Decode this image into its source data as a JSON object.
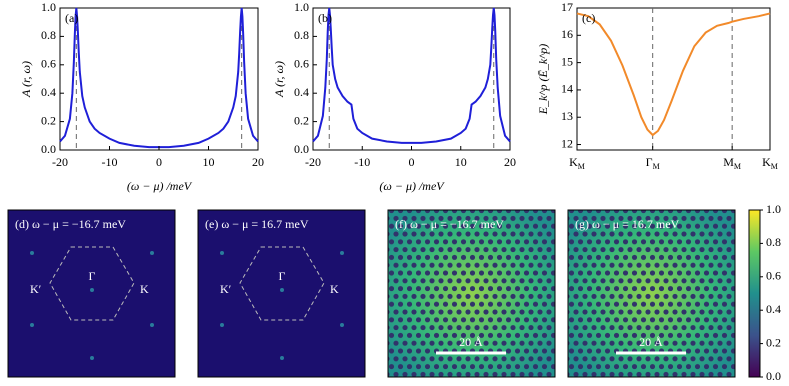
{
  "chart_data": [
    {
      "type": "line",
      "label": "(a)",
      "xlabel": "(ω − μ) /meV",
      "ylabel": "A (r, ω)",
      "color": "#1f1fd8",
      "xlim": [
        -20,
        20
      ],
      "xticks": [
        -20,
        -10,
        0,
        10,
        20
      ],
      "ylim": [
        0,
        1
      ],
      "yticks": [
        {
          "value": 0,
          "label": "0.0"
        },
        0.2,
        0.4,
        0.6,
        0.8,
        {
          "value": 1,
          "label": "1.0"
        }
      ],
      "vlines": [
        -16.7,
        16.7
      ],
      "x": [
        -20,
        -19,
        -18,
        -17.5,
        -17.2,
        -17,
        -16.85,
        -16.7,
        -16.55,
        -16.4,
        -16.2,
        -16,
        -15.5,
        -15,
        -14,
        -13,
        -12,
        -10,
        -8,
        -5,
        -2,
        0,
        2,
        5,
        8,
        10,
        12,
        13,
        14,
        15,
        15.5,
        16,
        16.2,
        16.4,
        16.55,
        16.7,
        16.85,
        17,
        17.2,
        17.5,
        18,
        19,
        20
      ],
      "values": [
        0.06,
        0.1,
        0.22,
        0.4,
        0.62,
        0.82,
        0.94,
        1.0,
        0.94,
        0.84,
        0.68,
        0.55,
        0.38,
        0.3,
        0.2,
        0.15,
        0.12,
        0.08,
        0.05,
        0.03,
        0.02,
        0.02,
        0.02,
        0.03,
        0.05,
        0.08,
        0.12,
        0.15,
        0.2,
        0.3,
        0.38,
        0.55,
        0.68,
        0.84,
        0.94,
        1.0,
        0.94,
        0.82,
        0.62,
        0.4,
        0.22,
        0.1,
        0.06
      ]
    },
    {
      "type": "line",
      "label": "(b)",
      "xlabel": "(ω − μ) /meV",
      "ylabel": "A (r, ω)",
      "color": "#1f1fd8",
      "xlim": [
        -20,
        20
      ],
      "xticks": [
        -20,
        -10,
        0,
        10,
        20
      ],
      "ylim": [
        0,
        1
      ],
      "yticks": [
        {
          "value": 0,
          "label": "0.0"
        },
        0.2,
        0.4,
        0.6,
        0.8,
        {
          "value": 1,
          "label": "1.0"
        }
      ],
      "vlines": [
        -16.7,
        16.7
      ],
      "x": [
        -20,
        -19,
        -18,
        -17.5,
        -17.2,
        -17,
        -16.85,
        -16.7,
        -16.55,
        -16.4,
        -16.2,
        -16,
        -15.5,
        -15,
        -14,
        -13,
        -12.2,
        -11.8,
        -11,
        -10,
        -8,
        -5,
        -2,
        0,
        2,
        5,
        8,
        10,
        11,
        11.8,
        12.2,
        13,
        14,
        15,
        15.5,
        16,
        16.2,
        16.4,
        16.55,
        16.7,
        16.85,
        17,
        17.2,
        17.5,
        18,
        19,
        20
      ],
      "values": [
        0.06,
        0.1,
        0.24,
        0.44,
        0.64,
        0.84,
        0.95,
        1.0,
        0.95,
        0.86,
        0.72,
        0.6,
        0.5,
        0.44,
        0.38,
        0.34,
        0.32,
        0.22,
        0.15,
        0.12,
        0.08,
        0.06,
        0.05,
        0.05,
        0.05,
        0.06,
        0.08,
        0.12,
        0.15,
        0.22,
        0.32,
        0.34,
        0.38,
        0.44,
        0.5,
        0.6,
        0.72,
        0.86,
        0.95,
        1.0,
        0.95,
        0.84,
        0.64,
        0.44,
        0.24,
        0.1,
        0.06
      ]
    },
    {
      "type": "line",
      "label": "(c)",
      "ylabel": "E_k^p (Ē_k^p)",
      "color": "#f28a2a",
      "xlim": [
        0,
        2.55
      ],
      "xticks": [
        {
          "value": 0,
          "label": "K",
          "sub": "M"
        },
        {
          "value": 1,
          "label": "Γ",
          "sub": "M"
        },
        {
          "value": 2.05,
          "label": "M",
          "sub": "M"
        },
        {
          "value": 2.55,
          "label": "K",
          "sub": "M"
        }
      ],
      "ylim": [
        11.8,
        17
      ],
      "yticks": [
        12,
        13,
        14,
        15,
        16,
        17
      ],
      "vlines": [
        1,
        2.05
      ],
      "x": [
        0,
        0.15,
        0.3,
        0.45,
        0.6,
        0.75,
        0.85,
        0.93,
        1.0,
        1.07,
        1.15,
        1.25,
        1.4,
        1.55,
        1.7,
        1.85,
        2.0,
        2.05,
        2.2,
        2.4,
        2.55
      ],
      "values": [
        16.8,
        16.7,
        16.4,
        15.8,
        14.9,
        13.8,
        13.0,
        12.55,
        12.35,
        12.5,
        12.9,
        13.6,
        14.7,
        15.6,
        16.1,
        16.35,
        16.45,
        16.5,
        16.6,
        16.7,
        16.8
      ]
    },
    {
      "type": "colorbar",
      "ylim": [
        0,
        1
      ],
      "yticks": [
        {
          "value": 0,
          "label": "0.0"
        },
        0.2,
        0.4,
        0.6,
        0.8,
        {
          "value": 1,
          "label": "1.0"
        }
      ]
    }
  ],
  "images": [
    {
      "label": "(d) ω − μ = −16.7 meV",
      "gamma": "Γ",
      "k": "K",
      "kprime": "K′"
    },
    {
      "label": "(e) ω − μ = 16.7 meV",
      "gamma": "Γ",
      "k": "K",
      "kprime": "K′"
    },
    {
      "label": "(f) ω − μ = −16.7 meV",
      "scalebar": "20 Å"
    },
    {
      "label": "(g) ω − μ = 16.7 meV",
      "scalebar": "20 Å"
    }
  ]
}
